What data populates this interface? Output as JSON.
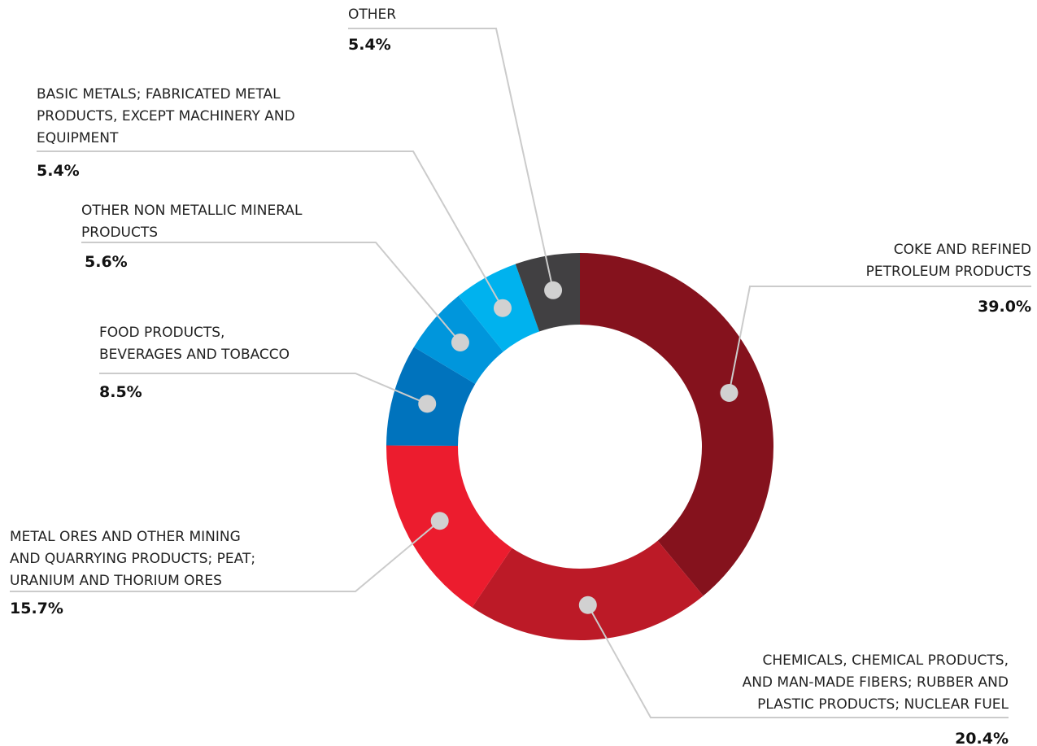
{
  "chart_data": {
    "type": "donut",
    "categories": [
      "COKE AND REFINED\nPETROLEUM PRODUCTS",
      "CHEMICALS, CHEMICAL PRODUCTS,\nAND MAN-MADE FIBERS; RUBBER AND\nPLASTIC PRODUCTS; NUCLEAR FUEL",
      "METAL ORES AND OTHER MINING\nAND QUARRYING PRODUCTS; PEAT;\nURANIUM AND THORIUM ORES",
      "FOOD PRODUCTS,\nBEVERAGES AND TOBACCO",
      "OTHER NON METALLIC MINERAL\nPRODUCTS",
      "BASIC METALS; FABRICATED METAL\nPRODUCTS, EXCEPT MACHINERY AND\nEQUIPMENT",
      "OTHER"
    ],
    "values": [
      39.0,
      20.4,
      15.7,
      8.5,
      5.6,
      5.4,
      5.4
    ],
    "value_labels": [
      "39.0%",
      "20.4%",
      "15.7%",
      "8.5%",
      "5.6%",
      "5.4%",
      "5.4%"
    ],
    "colors": [
      "#85121d",
      "#bc1a27",
      "#ec1c2e",
      "#0073bd",
      "#0096dc",
      "#00b2ee",
      "#414042"
    ]
  }
}
